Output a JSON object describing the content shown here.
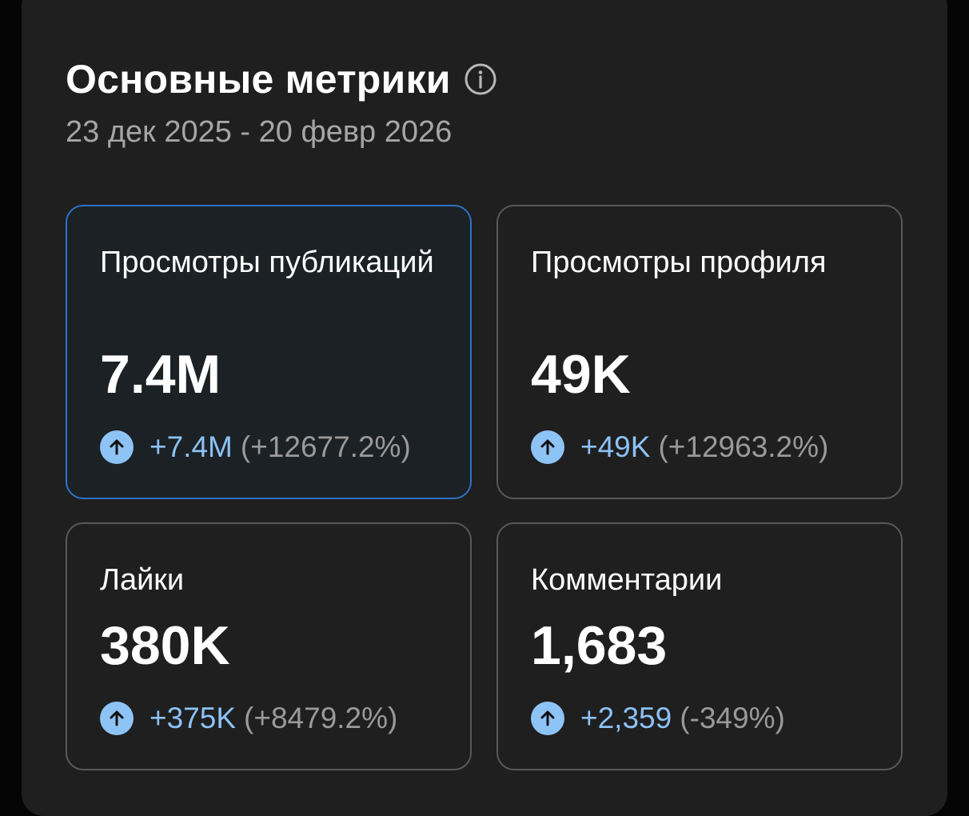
{
  "header": {
    "title": "Основные метрики",
    "info_icon": "info-circle-icon",
    "date_range": "23 дек 2025 - 20 февр 2026"
  },
  "colors": {
    "panel_background": "#1f1f1f",
    "selected_border": "#2c73c9",
    "positive_accent": "#8cc2f7",
    "muted_text": "#9a9a9a"
  },
  "metrics": [
    {
      "label": "Просмотры публикаций",
      "value": "7.4M",
      "change": "+7.4M",
      "change_percent": "(+12677.2%)",
      "trend_icon": "arrow-up-circle-icon",
      "selected": true
    },
    {
      "label": "Просмотры профиля",
      "value": "49K",
      "change": "+49K",
      "change_percent": "(+12963.2%)",
      "trend_icon": "arrow-up-circle-icon",
      "selected": false
    },
    {
      "label": "Лайки",
      "value": "380K",
      "change": "+375K",
      "change_percent": "(+8479.2%)",
      "trend_icon": "arrow-up-circle-icon",
      "selected": false
    },
    {
      "label": "Комментарии",
      "value": "1,683",
      "change": "+2,359",
      "change_percent": "(-349%)",
      "trend_icon": "arrow-up-circle-icon",
      "selected": false
    }
  ]
}
